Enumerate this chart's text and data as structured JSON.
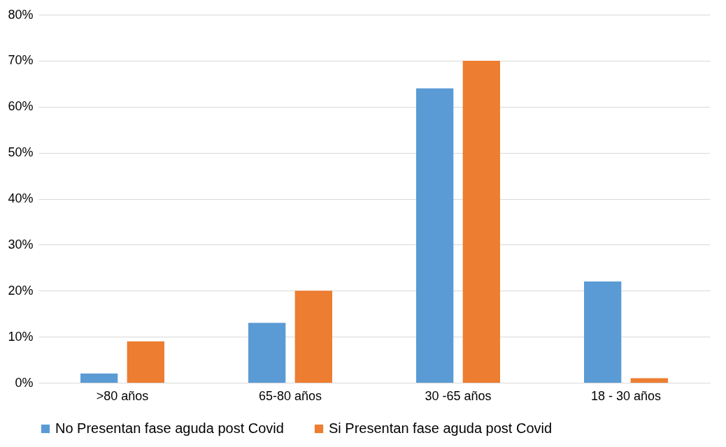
{
  "chart_data": {
    "type": "bar",
    "categories": [
      ">80 años",
      "65-80 años",
      "30 -65 años",
      "18 - 30 años"
    ],
    "series": [
      {
        "name": "No Presentan fase aguda post Covid",
        "color": "#5b9bd5",
        "values": [
          2,
          13,
          64,
          22
        ]
      },
      {
        "name": "Si Presentan fase aguda post Covid",
        "color": "#ed7d31",
        "values": [
          9,
          20,
          70,
          1
        ]
      }
    ],
    "ylim": [
      0,
      80
    ],
    "yticks": [
      {
        "value": 0,
        "label": "0%"
      },
      {
        "value": 10,
        "label": "10%"
      },
      {
        "value": 20,
        "label": "20%"
      },
      {
        "value": 30,
        "label": "30%"
      },
      {
        "value": 40,
        "label": "40%"
      },
      {
        "value": 50,
        "label": "50%"
      },
      {
        "value": 60,
        "label": "60%"
      },
      {
        "value": 70,
        "label": "70%"
      },
      {
        "value": 80,
        "label": "80%"
      }
    ],
    "grid": "y",
    "legend": "bottom"
  }
}
